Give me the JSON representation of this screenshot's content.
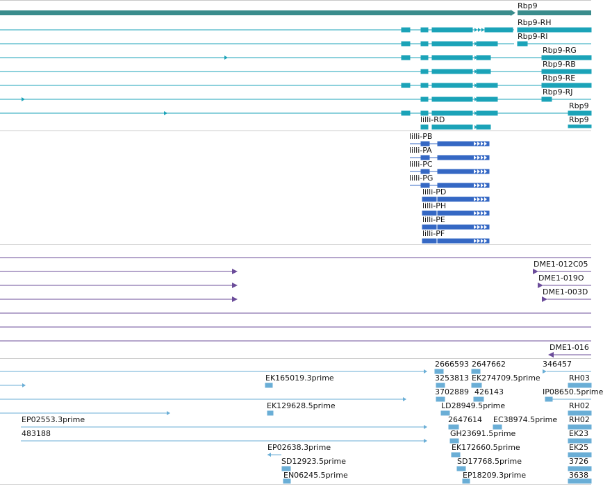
{
  "colors": {
    "gene": "#3a8c8c",
    "transcript": "#1ba3b8",
    "protein": "#3568c4",
    "cdna": "#6b4c9a",
    "est": "#6aaed6",
    "separator": "#c8c8c8"
  },
  "tracks": {
    "gene": {
      "labels": [
        "Rbp9"
      ]
    },
    "transcripts": {
      "labels": [
        "Rbp9-RH",
        "Rbp9-RI",
        "Rbp9-RG",
        "Rbp9-RB",
        "Rbp9-RE",
        "Rbp9-RJ",
        "Rbp9",
        "Rbp9",
        "lilli-RD"
      ]
    },
    "proteins": {
      "labels": [
        "lilli-PB",
        "lilli-PA",
        "lilli-PC",
        "lilli-PG",
        "lilli-PD",
        "lilli-PH",
        "lilli-PE",
        "lilli-PF"
      ]
    },
    "cdna": {
      "labels": [
        "DME1-012C05",
        "DME1-019O",
        "DME1-003D",
        "DME1-016"
      ]
    },
    "est": {
      "labels": [
        "2666593",
        "2647662",
        "346457",
        "EK165019.3prime",
        "3253813",
        "EK274709.5prime",
        "RH03",
        "3702889",
        "426143",
        "IP08650.5prime",
        "EK129628.5prime",
        "LD28949.5prime",
        "RH02",
        "EP02553.3prime",
        "2647614",
        "EC38974.5prime",
        "RH02",
        "483188",
        "GH23691.5prime",
        "EK23",
        "EP02638.3prime",
        "EK172660.5prime",
        "EK25",
        "SD12923.5prime",
        "SD17768.5prime",
        "3726",
        "EN06245.5prime",
        "EP18209.3prime",
        "3638"
      ]
    }
  }
}
